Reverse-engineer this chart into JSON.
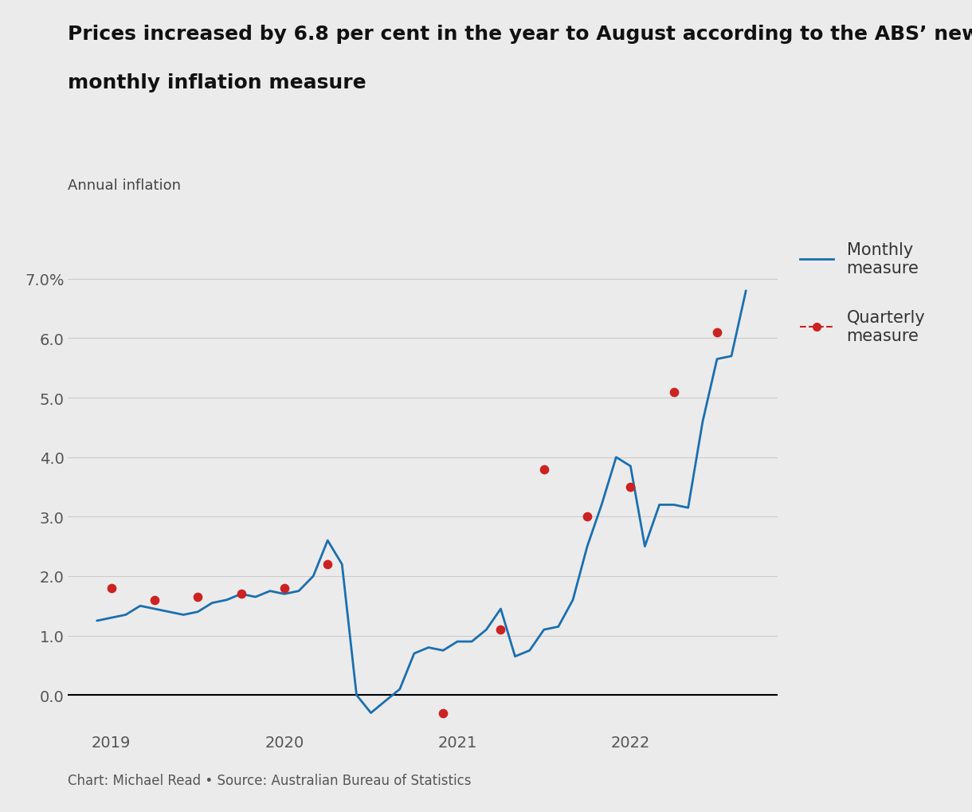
{
  "title_line1": "Prices increased by 6.8 per cent in the year to August according to the ABS’ new",
  "title_line2": "monthly inflation measure",
  "ylabel": "Annual inflation",
  "footnote": "Chart: Michael Read • Source: Australian Bureau of Statistics",
  "background_color": "#ebebeb",
  "monthly_x": [
    2018.917,
    2019.0,
    2019.083,
    2019.167,
    2019.25,
    2019.333,
    2019.417,
    2019.5,
    2019.583,
    2019.667,
    2019.75,
    2019.833,
    2019.917,
    2020.0,
    2020.083,
    2020.167,
    2020.25,
    2020.333,
    2020.417,
    2020.5,
    2020.583,
    2020.667,
    2020.75,
    2020.833,
    2020.917,
    2021.0,
    2021.083,
    2021.167,
    2021.25,
    2021.333,
    2021.417,
    2021.5,
    2021.583,
    2021.667,
    2021.75,
    2021.833,
    2021.917,
    2022.0,
    2022.083,
    2022.167,
    2022.25,
    2022.333,
    2022.417,
    2022.5,
    2022.583,
    2022.667
  ],
  "monthly_y": [
    1.25,
    1.3,
    1.35,
    1.5,
    1.45,
    1.4,
    1.35,
    1.4,
    1.55,
    1.6,
    1.7,
    1.65,
    1.75,
    1.7,
    1.75,
    2.0,
    2.6,
    2.2,
    0.0,
    -0.3,
    -0.1,
    0.1,
    0.7,
    0.8,
    0.75,
    0.9,
    0.9,
    1.1,
    1.45,
    0.65,
    0.75,
    1.1,
    1.15,
    1.6,
    2.5,
    3.2,
    4.0,
    3.85,
    2.5,
    3.2,
    3.2,
    3.15,
    4.6,
    5.65,
    5.7,
    6.8
  ],
  "quarterly_x": [
    2019.0,
    2019.25,
    2019.5,
    2019.75,
    2020.0,
    2020.25,
    2020.917,
    2021.25,
    2021.5,
    2021.75,
    2022.0,
    2022.25,
    2022.5
  ],
  "quarterly_y": [
    1.8,
    1.6,
    1.65,
    1.7,
    1.8,
    2.2,
    -0.3,
    1.1,
    3.8,
    3.0,
    3.5,
    5.1,
    6.1
  ],
  "monthly_color": "#1a6faf",
  "quarterly_color": "#cc2222",
  "monthly_linewidth": 2.0,
  "ylim": [
    -0.6,
    7.6
  ],
  "xlim": [
    2018.75,
    2022.85
  ],
  "yticks": [
    0.0,
    1.0,
    2.0,
    3.0,
    4.0,
    5.0,
    6.0,
    7.0
  ],
  "xtick_labels": [
    "2019",
    "2020",
    "2021",
    "2022"
  ],
  "xtick_positions": [
    2019.0,
    2020.0,
    2021.0,
    2022.0
  ],
  "title_fontsize": 18,
  "label_fontsize": 13,
  "tick_fontsize": 14,
  "legend_fontsize": 15,
  "footnote_fontsize": 12
}
